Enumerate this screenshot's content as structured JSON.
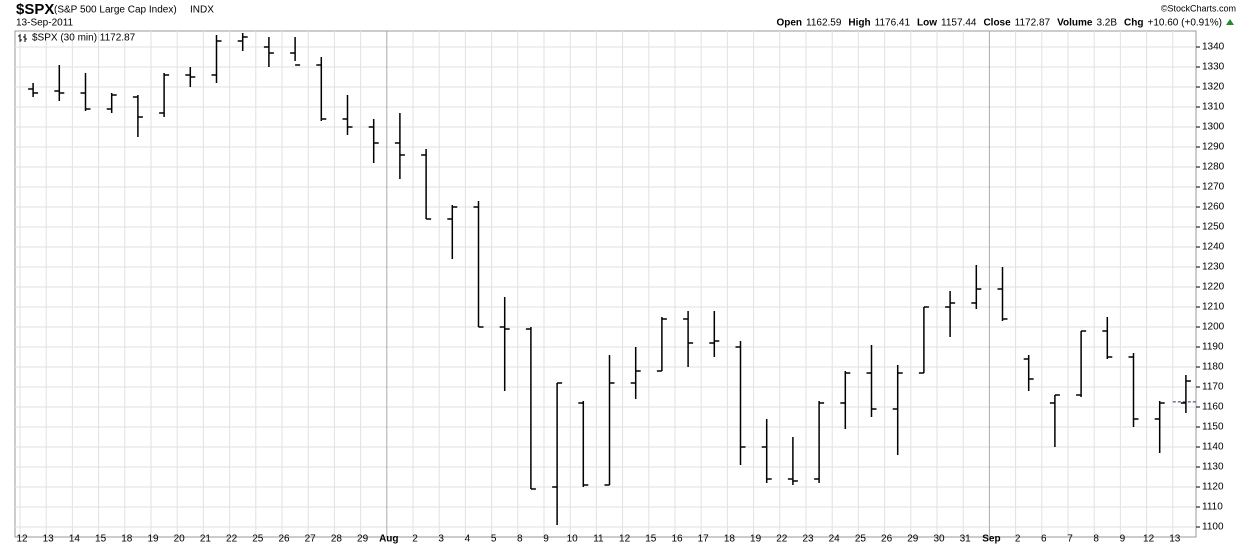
{
  "chart_data": {
    "type": "ohlc",
    "symbol": "$SPX",
    "name": "(S&P 500 Large Cap Index)",
    "exchange": "INDX",
    "date": "13-Sep-2011",
    "credit": "©StockCharts.com",
    "stats": [
      {
        "label": "Open",
        "value": "1162.59"
      },
      {
        "label": "High",
        "value": "1176.41"
      },
      {
        "label": "Low",
        "value": "1157.44"
      },
      {
        "label": "Close",
        "value": "1172.87"
      },
      {
        "label": "Volume",
        "value": "3.2B"
      },
      {
        "label": "Chg",
        "value": "+10.60 (+0.91%)"
      }
    ],
    "legend": "$SPX (30 min) 1172.87",
    "color": "#000000",
    "reference_line": 1162.59,
    "categories": [
      "12",
      "13",
      "14",
      "15",
      "18",
      "19",
      "20",
      "21",
      "22",
      "25",
      "26",
      "27",
      "28",
      "29",
      "Aug",
      "2",
      "3",
      "4",
      "5",
      "8",
      "9",
      "10",
      "11",
      "12",
      "15",
      "16",
      "17",
      "18",
      "19",
      "22",
      "23",
      "24",
      "25",
      "26",
      "29",
      "30",
      "31",
      "Sep",
      "2",
      "6",
      "7",
      "8",
      "9",
      "12",
      "13"
    ],
    "open": [
      1319,
      1318,
      1317,
      1309,
      1315,
      1307,
      1326,
      1326,
      1343,
      1340,
      1337,
      1331,
      1304,
      1300,
      1292,
      1286,
      1254,
      1260,
      1200,
      1199,
      1120,
      1162,
      1121,
      1172,
      1178,
      1204,
      1192,
      1190,
      1140,
      1124,
      1124,
      1162,
      1177,
      1159,
      1177,
      1210,
      1212,
      1219,
      1184,
      1162,
      1166,
      1198,
      1185,
      1154,
      1162
    ],
    "high": [
      1322,
      1331,
      1327,
      1317,
      1316,
      1327,
      1330,
      1346,
      1347,
      1345,
      1345,
      1335,
      1316,
      1304,
      1307,
      1289,
      1261,
      1263,
      1215,
      1200,
      1172,
      1163,
      1186,
      1190,
      1205,
      1208,
      1208,
      1193,
      1154,
      1145,
      1163,
      1178,
      1191,
      1181,
      1210,
      1218,
      1231,
      1230,
      1186,
      1166,
      1198,
      1205,
      1187,
      1163,
      1176
    ],
    "low": [
      1315,
      1313,
      1308,
      1307,
      1295,
      1305,
      1320,
      1322,
      1338,
      1330,
      1333,
      1303,
      1296,
      1282,
      1274,
      1254,
      1234,
      1200,
      1168,
      1119,
      1101,
      1120,
      1121,
      1164,
      1178,
      1180,
      1185,
      1131,
      1122,
      1121,
      1122,
      1149,
      1155,
      1136,
      1177,
      1195,
      1209,
      1203,
      1168,
      1140,
      1165,
      1184,
      1150,
      1137,
      1157
    ],
    "close": [
      1317,
      1317,
      1309,
      1316,
      1305,
      1326,
      1325,
      1343,
      1345,
      1337,
      1331,
      1304,
      1300,
      1292,
      1286,
      1254,
      1260,
      1200,
      1199,
      1119,
      1172,
      1121,
      1172,
      1178,
      1204,
      1192,
      1193,
      1140,
      1124,
      1123,
      1162,
      1177,
      1159,
      1177,
      1210,
      1212,
      1219,
      1204,
      1174,
      1166,
      1198,
      1185,
      1154,
      1162,
      1173
    ],
    "major_categories": [
      "Aug",
      "Sep"
    ],
    "ylim": [
      1095,
      1348
    ],
    "yticks": [
      1100,
      1110,
      1120,
      1130,
      1140,
      1150,
      1160,
      1170,
      1180,
      1190,
      1200,
      1210,
      1220,
      1230,
      1240,
      1250,
      1260,
      1270,
      1280,
      1290,
      1300,
      1310,
      1320,
      1330,
      1340
    ],
    "grid": true
  }
}
